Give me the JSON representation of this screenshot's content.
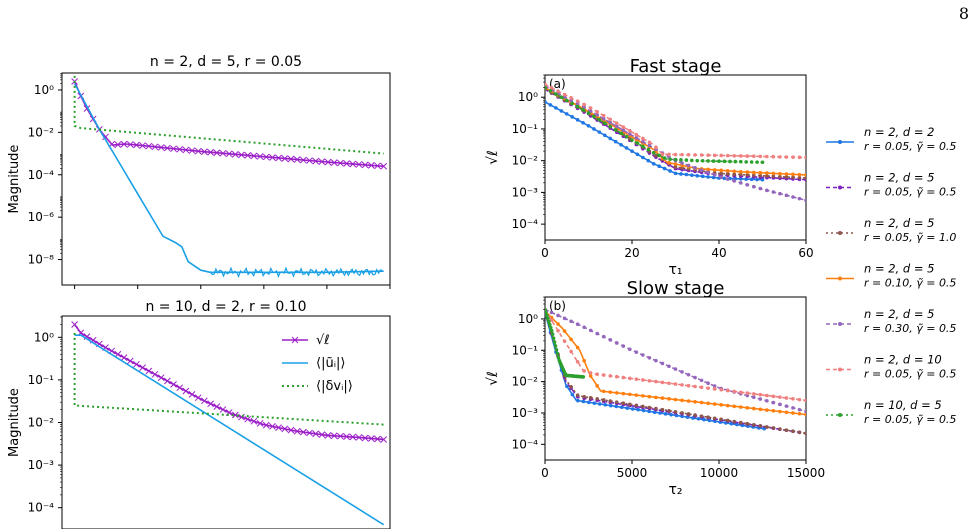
{
  "page_number": "8",
  "chart_data": [
    {
      "id": "top-left",
      "type": "line",
      "title": "n = 2,  d = 5,  r = 0.05",
      "xlabel": "",
      "ylabel": "Magnitude",
      "yscale": "log",
      "xlim": [
        -40,
        1000
      ],
      "ylim_exp": [
        -9.2,
        0.8
      ],
      "yticks_exp": [
        0,
        -2,
        -4,
        -6,
        -8
      ],
      "yticks": [
        "10⁰",
        "10⁻²",
        "10⁻⁴",
        "10⁻⁶",
        "10⁻⁸"
      ],
      "series": [
        {
          "key": "ell",
          "color": "#9b1ec8",
          "marker": "x",
          "x": [
            0,
            20,
            40,
            80,
            120,
            160,
            200,
            400,
            600,
            800,
            980
          ],
          "log10_y": [
            0.4,
            -0.3,
            -0.9,
            -1.9,
            -2.6,
            -2.55,
            -2.6,
            -2.9,
            -3.15,
            -3.4,
            -3.6
          ]
        },
        {
          "key": "u",
          "color": "#1aa0e6",
          "x": [
            0,
            40,
            80,
            120,
            160,
            200,
            240,
            280,
            320,
            340,
            360,
            400,
            430,
            600,
            800,
            980
          ],
          "log10_y": [
            0.3,
            -0.8,
            -1.9,
            -2.9,
            -3.9,
            -4.9,
            -5.9,
            -6.9,
            -7.2,
            -7.4,
            -8.1,
            -8.5,
            -8.6,
            -8.6,
            -8.6,
            -8.55
          ]
        },
        {
          "key": "v",
          "color": "#2ca02c",
          "dash": "2,3",
          "x": [
            0,
            0.1,
            20,
            980
          ],
          "log10_y": [
            0.9,
            -1.7,
            -1.8,
            -3.0
          ]
        }
      ]
    },
    {
      "id": "bottom-left",
      "type": "line",
      "title": "n = 10,  d = 2,  r = 0.10",
      "xlabel": "",
      "ylabel": "Magnitude",
      "yscale": "log",
      "xlim": [
        -40,
        1000
      ],
      "ylim_exp": [
        -4.5,
        0.5
      ],
      "yticks_exp": [
        0,
        -1,
        -2,
        -3,
        -4
      ],
      "yticks": [
        "10⁰",
        "10⁻¹",
        "10⁻²",
        "10⁻³",
        "10⁻⁴"
      ],
      "legend": [
        "√ℓ",
        "⟨|ũᵢ|⟩",
        "⟨|δvᵢ|⟩"
      ],
      "series": [
        {
          "key": "ell",
          "color": "#9b1ec8",
          "marker": "x",
          "x": [
            0,
            20,
            100,
            200,
            300,
            400,
            500,
            560,
            600,
            700,
            800,
            900,
            980
          ],
          "log10_y": [
            0.3,
            0.1,
            -0.25,
            -0.65,
            -1.05,
            -1.45,
            -1.8,
            -1.95,
            -2.05,
            -2.2,
            -2.3,
            -2.35,
            -2.4
          ]
        },
        {
          "key": "u",
          "color": "#1aa0e6",
          "x": [
            0,
            20,
            980
          ],
          "log10_y": [
            0.05,
            0.05,
            -4.4
          ]
        },
        {
          "key": "v",
          "color": "#2ca02c",
          "dash": "2,3",
          "x": [
            0,
            0.1,
            980
          ],
          "log10_y": [
            0.1,
            -1.6,
            -2.05
          ]
        }
      ]
    },
    {
      "id": "fast-stage",
      "type": "line",
      "panel": "(a)",
      "title": "Fast stage",
      "xlabel": "τ₁",
      "ylabel": "√ℓ",
      "yscale": "log",
      "xlim": [
        0,
        60
      ],
      "xticks": [
        0,
        20,
        40,
        60
      ],
      "ylim_exp": [
        -4.5,
        0.7
      ],
      "yticks_exp": [
        0,
        -1,
        -2,
        -3,
        -4
      ],
      "yticks": [
        "10⁰",
        "10⁻¹",
        "10⁻²",
        "10⁻³",
        "10⁻⁴"
      ],
      "series": [
        {
          "name": "n = 2,  d = 2|r = 0.05,  γ̃ = 0.5",
          "color": "#1f77e4",
          "dash": "",
          "x": [
            0,
            10,
            20,
            25,
            30,
            40,
            50
          ],
          "log10_y": [
            -0.15,
            -0.9,
            -1.7,
            -2.1,
            -2.4,
            -2.55,
            -2.6
          ]
        },
        {
          "name": "n = 2,  d = 5|r = 0.05,  γ̃ = 0.5",
          "color": "#7d22c0",
          "dash": "4,3",
          "x": [
            0,
            10,
            20,
            25,
            30,
            40,
            60
          ],
          "log10_y": [
            0.25,
            -0.55,
            -1.4,
            -1.85,
            -2.25,
            -2.45,
            -2.6
          ]
        },
        {
          "name": "n = 2,  d = 5|r = 0.05,  γ̃ = 1.0",
          "color": "#8c564b",
          "dash": "2,3",
          "x": [
            0,
            10,
            20,
            25,
            30,
            40,
            60
          ],
          "log10_y": [
            0.25,
            -0.5,
            -1.35,
            -1.8,
            -2.2,
            -2.4,
            -2.55
          ]
        },
        {
          "name": "n = 2,  d = 5|r = 0.10,  γ̃ = 0.5",
          "color": "#ff7f0e",
          "dash": "",
          "x": [
            0,
            10,
            20,
            25,
            28,
            35,
            45,
            60
          ],
          "log10_y": [
            0.3,
            -0.45,
            -1.25,
            -1.65,
            -2.05,
            -2.25,
            -2.35,
            -2.45
          ]
        },
        {
          "name": "n = 2,  d = 5|r = 0.30,  γ̃ = 0.5",
          "color": "#9467bd",
          "dash": "4,3",
          "x": [
            0,
            10,
            20,
            25,
            30,
            40,
            50,
            60
          ],
          "log10_y": [
            0.35,
            -0.4,
            -1.2,
            -1.6,
            -2.0,
            -2.5,
            -2.9,
            -3.25
          ]
        },
        {
          "name": "n = 2,  d = 10|r = 0.05,  γ̃ = 0.5",
          "color": "#f08080",
          "dash": "4,3",
          "x": [
            0,
            10,
            20,
            25,
            27,
            35,
            45,
            60
          ],
          "log10_y": [
            0.4,
            -0.3,
            -1.1,
            -1.5,
            -1.8,
            -1.82,
            -1.85,
            -1.9
          ]
        },
        {
          "name": "n = 10,  d = 5|r = 0.05,  γ̃ = 0.5",
          "color": "#2ca02c",
          "dash": "2,3",
          "x": [
            0,
            10,
            20,
            25,
            28,
            35,
            50
          ],
          "log10_y": [
            0.3,
            -0.5,
            -1.35,
            -1.75,
            -1.95,
            -2.0,
            -2.05
          ]
        }
      ]
    },
    {
      "id": "slow-stage",
      "type": "line",
      "panel": "(b)",
      "title": "Slow stage",
      "xlabel": "τ₂",
      "ylabel": "√ℓ",
      "yscale": "log",
      "xlim": [
        0,
        15000
      ],
      "xticks": [
        0,
        5000,
        10000,
        15000
      ],
      "ylim_exp": [
        -4.5,
        0.7
      ],
      "yticks_exp": [
        0,
        -1,
        -2,
        -3,
        -4
      ],
      "yticks": [
        "10⁰",
        "10⁻¹",
        "10⁻²",
        "10⁻³",
        "10⁻⁴"
      ],
      "series": [
        {
          "name": "n = 2,  d = 2|r = 0.05,  γ̃ = 0.5",
          "color": "#1f77e4",
          "dash": "",
          "x": [
            0,
            600,
            1200,
            1800,
            12600
          ],
          "log10_y": [
            0.2,
            -1.0,
            -2.1,
            -2.6,
            -3.5
          ]
        },
        {
          "name": "n = 2,  d = 5|r = 0.05,  γ̃ = 0.5",
          "color": "#7d22c0",
          "dash": "4,3",
          "x": [
            0,
            600,
            1200,
            1900,
            15000
          ],
          "log10_y": [
            0.25,
            -0.9,
            -2.0,
            -2.5,
            -3.65
          ]
        },
        {
          "name": "n = 2,  d = 5|r = 0.05,  γ̃ = 1.0",
          "color": "#8c564b",
          "dash": "2,3",
          "x": [
            0,
            600,
            1200,
            1900,
            15000
          ],
          "log10_y": [
            0.25,
            -0.85,
            -1.95,
            -2.45,
            -3.65
          ]
        },
        {
          "name": "n = 2,  d = 5|r = 0.10,  γ̃ = 0.5",
          "color": "#ff7f0e",
          "dash": "",
          "x": [
            0,
            1000,
            2000,
            2600,
            3200,
            15000
          ],
          "log10_y": [
            0.25,
            -0.3,
            -1.0,
            -1.8,
            -2.3,
            -3.05
          ]
        },
        {
          "name": "n = 2,  d = 5|r = 0.30,  γ̃ = 0.5",
          "color": "#9467bd",
          "dash": "4,3",
          "x": [
            0,
            2000,
            5000,
            10000,
            15000
          ],
          "log10_y": [
            0.3,
            -0.2,
            -1.0,
            -2.2,
            -2.95
          ]
        },
        {
          "name": "n = 2,  d = 10|r = 0.05,  γ̃ = 0.5",
          "color": "#f08080",
          "dash": "4,3",
          "x": [
            0,
            1000,
            2200,
            2800,
            15000
          ],
          "log10_y": [
            0.3,
            -0.6,
            -1.65,
            -1.75,
            -2.6
          ]
        },
        {
          "name": "n = 10,  d = 5|r = 0.05,  γ̃ = 0.5",
          "color": "#2ca02c",
          "dash": "2,3",
          "x": [
            0,
            400,
            800,
            1200,
            2200
          ],
          "log10_y": [
            0.3,
            -0.4,
            -1.3,
            -1.8,
            -1.85
          ]
        }
      ]
    }
  ]
}
